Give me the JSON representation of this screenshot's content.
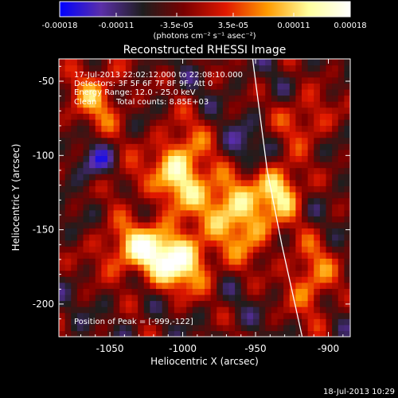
{
  "colorbar": {
    "ticks": [
      "-0.00018",
      "-0.00011",
      "-3.5e-05",
      "3.5e-05",
      "0.00011",
      "0.00018"
    ],
    "units": "(photons cm⁻² s⁻¹ asec⁻²)",
    "range": [
      -0.00018,
      0.00018
    ],
    "colors": [
      "#0000ff",
      "#5b2fa8",
      "#1e1e1e",
      "#7a0000",
      "#e01800",
      "#ff9a00",
      "#ffff9e",
      "#ffffff"
    ]
  },
  "chart_data": {
    "type": "heatmap",
    "title": "Reconstructed RHESSI Image",
    "xlabel": "Heliocentric X (arcsec)",
    "ylabel": "Heliocentric Y (arcsec)",
    "xlim": [
      -1085,
      -885
    ],
    "ylim": [
      -222,
      -35
    ],
    "xticks": [
      {
        "value": -1050,
        "label": "-1050"
      },
      {
        "value": -1000,
        "label": "-1000"
      },
      {
        "value": -950,
        "label": "-950"
      },
      {
        "value": -900,
        "label": "-900"
      }
    ],
    "yticks": [
      {
        "value": -50,
        "label": "-50"
      },
      {
        "value": -100,
        "label": "-100"
      },
      {
        "value": -150,
        "label": "-150"
      },
      {
        "value": -200,
        "label": "-200"
      }
    ],
    "annotations": [
      "17-Jul-2013 22:02:12.000 to 22:08:10.000",
      "Detectors: 3F 5F 6F 7F 8F 9F, Att 0",
      "Energy Range: 12.0 - 25.0 keV",
      "Clean",
      "Total counts: 8.85E+03"
    ],
    "peak_label": "Position of Peak = [-999,-122]",
    "peak": [
      -999,
      -122
    ],
    "sources": [
      {
        "x": -1001,
        "y": -110,
        "sigma_x": 14,
        "sigma_y": 20,
        "intensity": 0.00018
      },
      {
        "x": -1028,
        "y": -163,
        "sigma_x": 20,
        "sigma_y": 13,
        "intensity": 0.00017
      },
      {
        "x": -1000,
        "y": -173,
        "sigma_x": 15,
        "sigma_y": 14,
        "intensity": 0.00016
      },
      {
        "x": -970,
        "y": -130,
        "sigma_x": 12,
        "sigma_y": 14,
        "intensity": 0.00014
      },
      {
        "x": -933,
        "y": -123,
        "sigma_x": 11,
        "sigma_y": 13,
        "intensity": 0.00017
      },
      {
        "x": -955,
        "y": -150,
        "sigma_x": 12,
        "sigma_y": 15,
        "intensity": 0.00013
      },
      {
        "x": -912,
        "y": -183,
        "sigma_x": 12,
        "sigma_y": 18,
        "intensity": 0.00012
      },
      {
        "x": -1060,
        "y": -60,
        "sigma_x": 14,
        "sigma_y": 18,
        "intensity": 0.00011
      },
      {
        "x": -915,
        "y": -75,
        "sigma_x": 14,
        "sigma_y": 12,
        "intensity": 9e-05
      },
      {
        "x": -1040,
        "y": -115,
        "sigma_x": 10,
        "sigma_y": 10,
        "intensity": 7e-05
      },
      {
        "x": -1060,
        "y": -105,
        "sigma_x": 10,
        "sigma_y": 9,
        "intensity": -8e-05
      },
      {
        "x": -960,
        "y": -95,
        "sigma_x": 10,
        "sigma_y": 10,
        "intensity": -6e-05
      }
    ],
    "limb_curve": [
      [
        -952,
        -35
      ],
      [
        -942,
        -110
      ],
      [
        -932,
        -160
      ],
      [
        -918,
        -222
      ]
    ],
    "limb_color": "#ffffff"
  },
  "timestamp": "18-Jul-2013 10:29"
}
